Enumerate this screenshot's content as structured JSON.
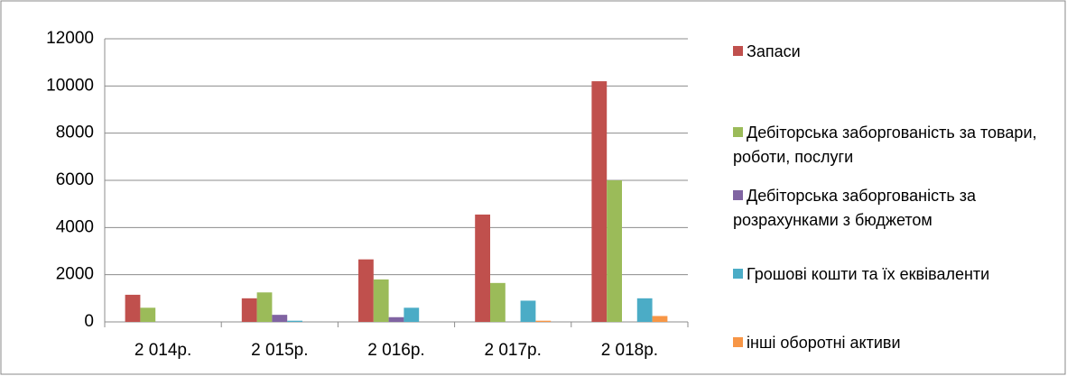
{
  "chart_data": {
    "type": "bar",
    "categories": [
      "2 014р.",
      "2 015р.",
      "2 016р.",
      "2 017р.",
      "2 018р."
    ],
    "series": [
      {
        "name": "Запаси",
        "color": "#c0504d",
        "values": [
          1150,
          1000,
          2650,
          4550,
          10200
        ]
      },
      {
        "name": "Дебіторська заборгованість за товари, роботи, послуги",
        "color": "#9bbb59",
        "values": [
          600,
          1250,
          1800,
          1650,
          6000
        ]
      },
      {
        "name": "Дебіторська заборгованість за розрахунками з бюджетом",
        "color": "#8064a2",
        "values": [
          0,
          300,
          200,
          0,
          0
        ]
      },
      {
        "name": "Грошові кошти та їх еквіваленти",
        "color": "#4bacc6",
        "values": [
          0,
          50,
          600,
          900,
          1000
        ]
      },
      {
        "name": "інші оборотні активи",
        "color": "#f79646",
        "values": [
          0,
          0,
          0,
          50,
          250
        ]
      }
    ],
    "ylim": [
      0,
      12000
    ],
    "yticks": [
      0,
      2000,
      4000,
      6000,
      8000,
      10000,
      12000
    ],
    "grid": true,
    "legend": "right"
  }
}
